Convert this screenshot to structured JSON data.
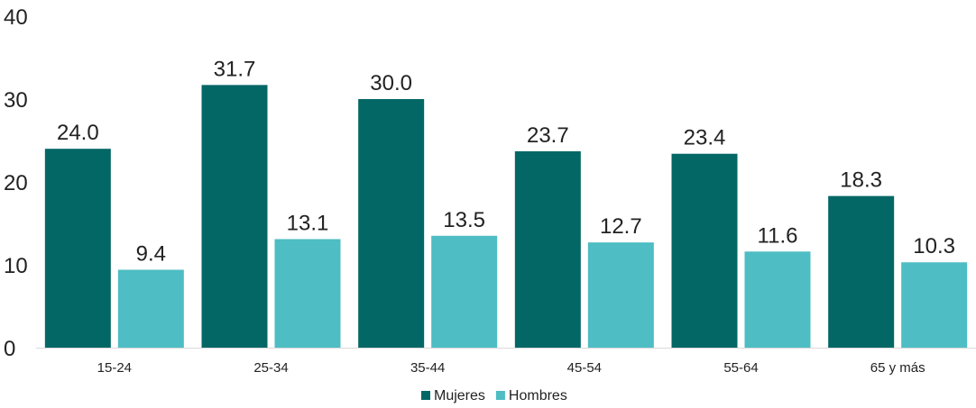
{
  "chart_data": {
    "type": "bar",
    "categories": [
      "15-24",
      "25-34",
      "35-44",
      "45-54",
      "55-64",
      "65 y más"
    ],
    "series": [
      {
        "name": "Mujeres",
        "values": [
          24.0,
          31.7,
          30.0,
          23.7,
          23.4,
          18.3
        ],
        "color": "#036766"
      },
      {
        "name": "Hombres",
        "values": [
          9.4,
          13.1,
          13.5,
          12.7,
          11.6,
          10.3
        ],
        "color": "#4EBDC4"
      }
    ],
    "yticks": [
      "0",
      "10",
      "20",
      "30",
      "40"
    ],
    "ylim": [
      0,
      40
    ],
    "grid": false,
    "legend_position": "bottom-center"
  }
}
